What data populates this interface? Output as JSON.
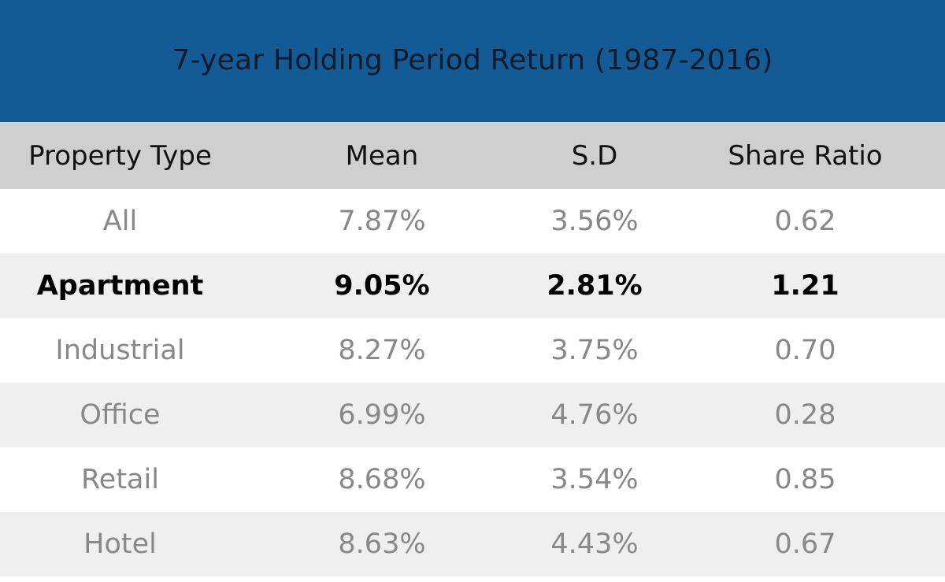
{
  "chart_data": {
    "type": "table",
    "title": "7-year Holding Period Return (1987-2016)",
    "columns": [
      "Property Type",
      "Mean",
      "S.D",
      "Share Ratio"
    ],
    "rows": [
      {
        "property_type": "All",
        "mean": "7.87%",
        "sd": "3.56%",
        "share_ratio": "0.62",
        "highlight": false
      },
      {
        "property_type": "Apartment",
        "mean": "9.05%",
        "sd": "2.81%",
        "share_ratio": "1.21",
        "highlight": true
      },
      {
        "property_type": "Industrial",
        "mean": "8.27%",
        "sd": "3.75%",
        "share_ratio": "0.70",
        "highlight": false
      },
      {
        "property_type": "Office",
        "mean": "6.99%",
        "sd": "4.76%",
        "share_ratio": "0.28",
        "highlight": false
      },
      {
        "property_type": "Retail",
        "mean": "8.68%",
        "sd": "3.54%",
        "share_ratio": "0.85",
        "highlight": false
      },
      {
        "property_type": "Hotel",
        "mean": "8.63%",
        "sd": "4.43%",
        "share_ratio": "0.67",
        "highlight": false
      }
    ]
  },
  "colors": {
    "title_bar": "#145b95",
    "header_row": "#cfcfcf",
    "row_light": "#ffffff",
    "row_shaded": "#efefef",
    "text_muted": "#888888",
    "text_strong": "#000000"
  }
}
